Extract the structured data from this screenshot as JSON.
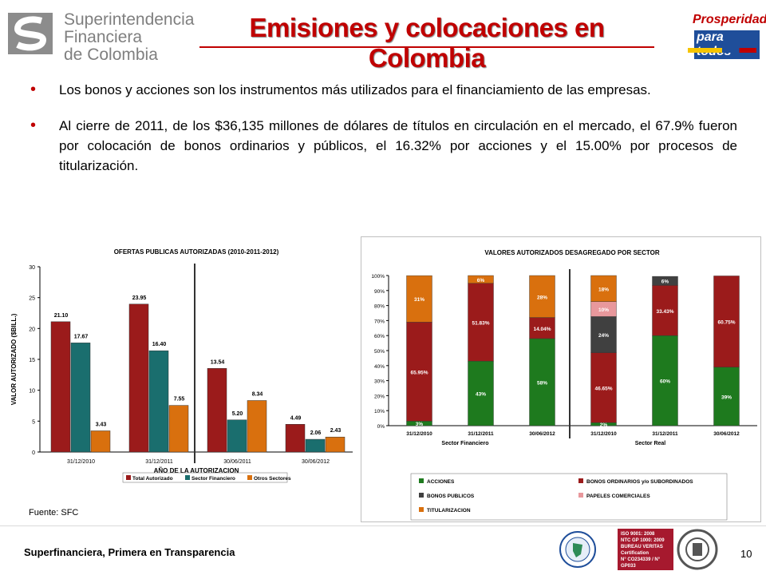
{
  "header": {
    "org_line1": "Superintendencia",
    "org_line2": "Financiera",
    "org_line3": "de Colombia",
    "title": "Emisiones y colocaciones en Colombia",
    "logo_right_line1": "Prosperidad",
    "logo_right_line2": "para todos"
  },
  "bullets": [
    "Los bonos y acciones son los instrumentos más utilizados para el financiamiento de las empresas.",
    "Al cierre de 2011, de los $36,135 millones de dólares de títulos en circulación en el mercado, el 67.9% fueron por colocación de bonos ordinarios y públicos, el 16.32% por acciones y el 15.00% por procesos de titularización."
  ],
  "source": "Fuente: SFC",
  "footer": {
    "tagline": "Superfinanciera, Primera en Transparencia",
    "page": "10",
    "cert_lines": [
      "ISO 9001: 2008",
      "NTC GP 1000: 2009",
      "BUREAU VERITAS",
      "Certification",
      "N° CO234339 / N° GP033"
    ]
  },
  "colors": {
    "title_red": "#c00000",
    "dark_red": "#9b1b1b",
    "teal": "#1a6e6e",
    "orange": "#d9700e",
    "green": "#1e7a1e",
    "dark_gray": "#404040",
    "pink": "#e8989c"
  },
  "chart_data": [
    {
      "type": "bar",
      "title": "OFERTAS PUBLICAS AUTORIZADAS (2010-2011-2012)",
      "xlabel": "AÑO DE LA AUTORIZACION",
      "ylabel": "VALOR AUTORIZADO ($BILL.)",
      "ylim": [
        0,
        30
      ],
      "yticks": [
        "0",
        "5",
        "10",
        "15",
        "20",
        "25",
        "30"
      ],
      "categories": [
        "31/12/2010",
        "31/12/2011",
        "30/06/2011",
        "30/06/2012"
      ],
      "series": [
        {
          "name": "Total Autorizado",
          "values": [
            21.1,
            23.95,
            13.54,
            4.49
          ],
          "labels": [
            "21.10",
            "23.95",
            "13.54",
            "4.49"
          ],
          "color": "#9b1b1b"
        },
        {
          "name": "Sector Financiero",
          "values": [
            17.67,
            16.4,
            5.2,
            2.06
          ],
          "labels": [
            "17.67",
            "16.40",
            "5.20",
            "2.06"
          ],
          "color": "#1a6e6e"
        },
        {
          "name": "Otros Sectores",
          "values": [
            3.43,
            7.55,
            8.34,
            2.43
          ],
          "labels": [
            "3.43",
            "7.55",
            "8.34",
            "2.43"
          ],
          "color": "#d9700e"
        }
      ],
      "grid": false,
      "legend": "bottom"
    },
    {
      "type": "bar",
      "stacked": true,
      "title": "VALORES AUTORIZADOS DESAGREGADO POR SECTOR",
      "ylim": [
        0,
        100
      ],
      "yticks": [
        "0%",
        "10%",
        "20%",
        "30%",
        "40%",
        "50%",
        "60%",
        "70%",
        "80%",
        "90%",
        "100%"
      ],
      "categories": [
        "31/12/2010",
        "31/12/2011",
        "30/06/2012",
        "31/12/2010",
        "31/12/2011",
        "30/06/2012"
      ],
      "groups": [
        "Sector Financiero",
        "Sector Real"
      ],
      "series": [
        {
          "name": "ACCIONES",
          "color": "#1e7a1e",
          "values": [
            3,
            43,
            58,
            2,
            60,
            39
          ],
          "labels": [
            "3%",
            "43%",
            "58%",
            "2%",
            "60%",
            "39%"
          ]
        },
        {
          "name": "BONOS ORDINARIOS y/o SUBORDINADOS",
          "color": "#9b1b1b",
          "values": [
            65.95,
            51.83,
            14.04,
            46.65,
            33.43,
            60.75
          ],
          "labels": [
            "65.95%",
            "51.83%",
            "14.04%",
            "46.65%",
            "33.43%",
            "60.75%"
          ]
        },
        {
          "name": "BONOS PUBLICOS",
          "color": "#404040",
          "values": [
            0,
            0,
            0,
            24,
            6,
            0
          ],
          "labels": [
            "",
            "",
            "",
            "24%",
            "6%",
            ""
          ]
        },
        {
          "name": "PAPELES COMERCIALES",
          "color": "#e8989c",
          "values": [
            0,
            0,
            0,
            10,
            0,
            0
          ],
          "labels": [
            "",
            "",
            "",
            "10%",
            "",
            ""
          ]
        },
        {
          "name": "TITULARIZACION",
          "color": "#d9700e",
          "values": [
            31,
            6,
            28,
            18,
            0,
            0
          ],
          "labels": [
            "31%",
            "6%",
            "28%",
            "18%",
            "",
            ""
          ]
        }
      ],
      "grid": false,
      "legend": "bottom"
    }
  ]
}
